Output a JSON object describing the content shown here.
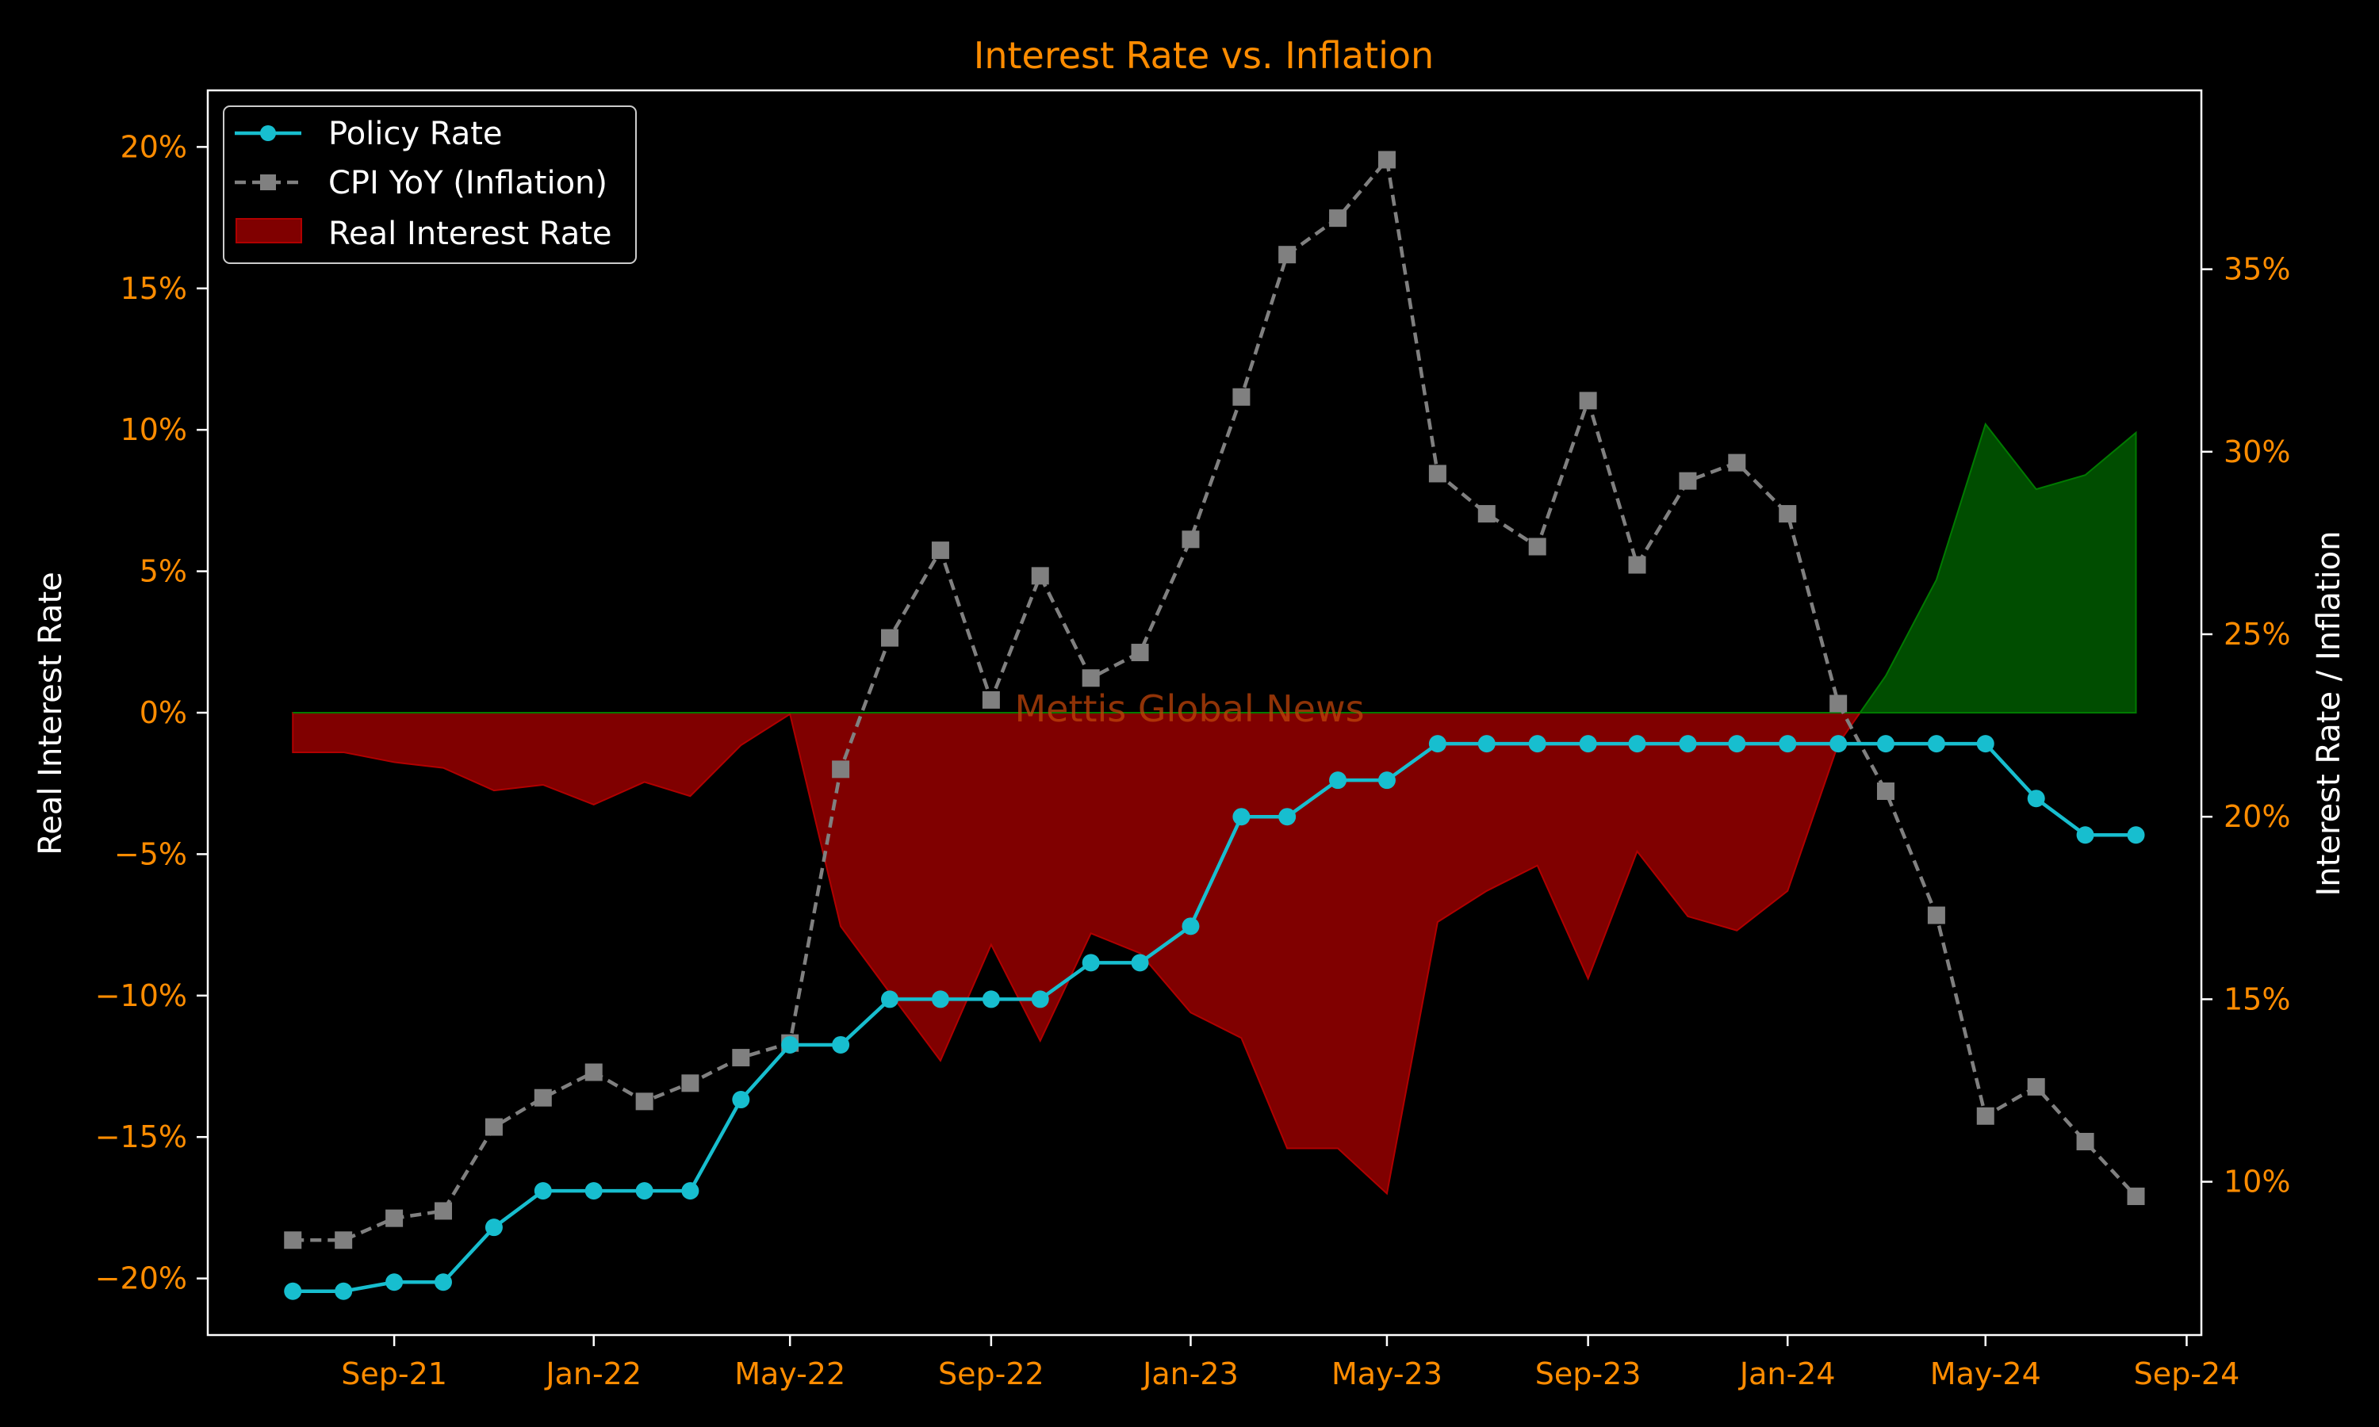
{
  "chart_data": {
    "type": "line",
    "title": "Interest Rate vs. Inflation",
    "left_ylabel": "Real Interest Rate",
    "right_ylabel": "Interest Rate / Inflation",
    "watermark": "Mettis Global News",
    "left_ylim": [
      -22,
      22
    ],
    "right_ylim": [
      5.8,
      39.9
    ],
    "left_yticks": [
      -20,
      -15,
      -10,
      -5,
      0,
      5,
      10,
      15,
      20
    ],
    "left_ytick_labels": [
      "−20%",
      "−15%",
      "−10%",
      "−5%",
      "0%",
      "5%",
      "10%",
      "15%",
      "20%"
    ],
    "right_yticks": [
      10,
      15,
      20,
      25,
      30,
      35
    ],
    "right_ytick_labels": [
      "10%",
      "15%",
      "20%",
      "25%",
      "30%",
      "35%"
    ],
    "x_range": [
      "2021-05-10",
      "2024-09-10"
    ],
    "xticks": [
      "2021-09-01",
      "2022-01-01",
      "2022-05-01",
      "2022-09-01",
      "2023-01-01",
      "2023-05-01",
      "2023-09-01",
      "2024-01-01",
      "2024-05-01",
      "2024-09-01"
    ],
    "xtick_labels": [
      "Sep-21",
      "Jan-22",
      "May-22",
      "Sep-22",
      "Jan-23",
      "May-23",
      "Sep-23",
      "Jan-24",
      "May-24",
      "Sep-24"
    ],
    "x": [
      "2021-07-01",
      "2021-08-01",
      "2021-09-01",
      "2021-10-01",
      "2021-11-01",
      "2021-12-01",
      "2022-01-01",
      "2022-02-01",
      "2022-03-01",
      "2022-04-01",
      "2022-05-01",
      "2022-06-01",
      "2022-07-01",
      "2022-08-01",
      "2022-09-01",
      "2022-10-01",
      "2022-11-01",
      "2022-12-01",
      "2023-01-01",
      "2023-02-01",
      "2023-03-01",
      "2023-04-01",
      "2023-05-01",
      "2023-06-01",
      "2023-07-01",
      "2023-08-01",
      "2023-09-01",
      "2023-10-01",
      "2023-11-01",
      "2023-12-01",
      "2024-01-01",
      "2024-02-01",
      "2024-03-01",
      "2024-04-01",
      "2024-05-01",
      "2024-06-01",
      "2024-07-01",
      "2024-08-01"
    ],
    "series": [
      {
        "name": "Policy Rate",
        "axis": "right",
        "color": "#17becf",
        "marker": "circle",
        "values": [
          7.0,
          7.0,
          7.25,
          7.25,
          8.75,
          9.75,
          9.75,
          9.75,
          9.75,
          12.25,
          13.75,
          13.75,
          15.0,
          15.0,
          15.0,
          15.0,
          16.0,
          16.0,
          17.0,
          20.0,
          20.0,
          21.0,
          21.0,
          22.0,
          22.0,
          22.0,
          22.0,
          22.0,
          22.0,
          22.0,
          22.0,
          22.0,
          22.0,
          22.0,
          22.0,
          20.5,
          19.5,
          19.5
        ]
      },
      {
        "name": "CPI YoY (Inflation)",
        "axis": "right",
        "color": "#808080",
        "marker": "square",
        "values": [
          8.4,
          8.4,
          9.0,
          9.2,
          11.5,
          12.3,
          13.0,
          12.2,
          12.7,
          13.4,
          13.8,
          21.3,
          24.9,
          27.3,
          23.2,
          26.6,
          23.8,
          24.5,
          27.6,
          31.5,
          35.4,
          36.4,
          38.0,
          29.4,
          28.3,
          27.4,
          31.4,
          26.9,
          29.2,
          29.7,
          28.3,
          23.1,
          20.7,
          17.3,
          11.8,
          12.6,
          11.1,
          9.6
        ]
      },
      {
        "name": "Real Interest Rate",
        "axis": "left",
        "type": "area",
        "negative_color": "#800000",
        "positive_color": "#004d00",
        "values": [
          -1.4,
          -1.4,
          -1.75,
          -1.95,
          -2.75,
          -2.55,
          -3.25,
          -2.45,
          -2.95,
          -1.15,
          -0.05,
          -7.55,
          -9.9,
          -12.3,
          -8.2,
          -11.6,
          -7.8,
          -8.5,
          -10.6,
          -11.5,
          -15.4,
          -15.4,
          -17.0,
          -7.4,
          -6.3,
          -5.4,
          -9.4,
          -4.9,
          -7.2,
          -7.7,
          -6.3,
          -1.1,
          1.3,
          4.7,
          10.2,
          7.9,
          8.4,
          9.9
        ]
      }
    ],
    "legend": {
      "placement": "top-left",
      "entries": [
        "Policy Rate",
        "CPI YoY (Inflation)",
        "Real Interest Rate"
      ]
    },
    "grid": false
  }
}
